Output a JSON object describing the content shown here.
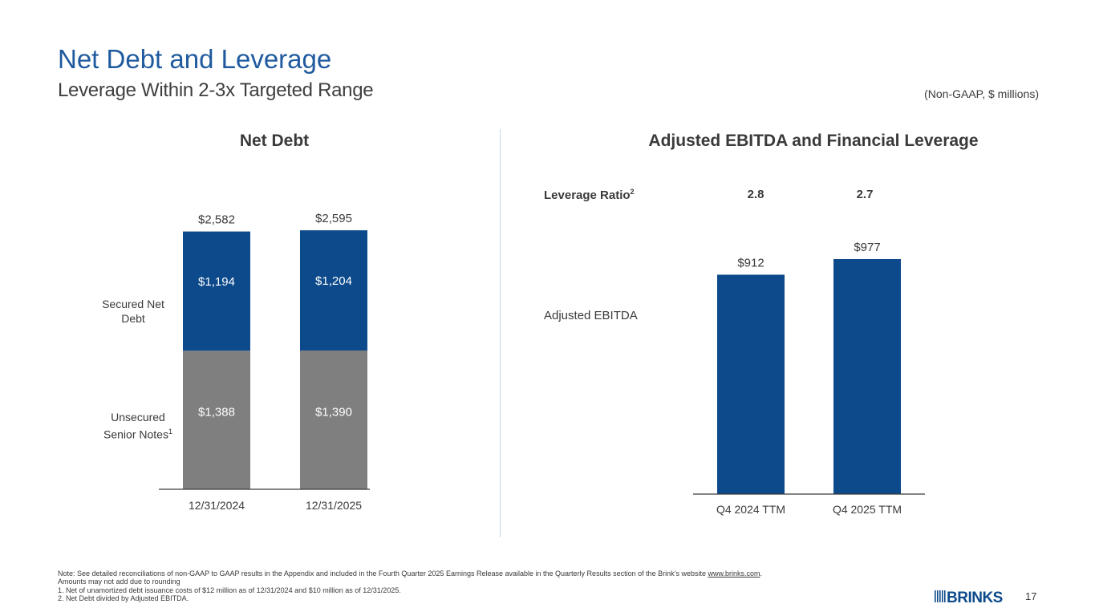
{
  "header": {
    "title": "Net Debt and Leverage",
    "subtitle": "Leverage Within 2-3x Targeted Range",
    "units_note": "(Non-GAAP, $ millions)"
  },
  "colors": {
    "brand_blue": "#0d4a8b",
    "title_blue": "#1f5a9e",
    "unsecured_gray": "#7f7f7f"
  },
  "chart_data": [
    {
      "type": "bar",
      "stacked": true,
      "title": "Net Debt",
      "categories": [
        "12/31/2024",
        "12/31/2025"
      ],
      "series": [
        {
          "name": "Unsecured Senior Notes",
          "footnote_mark": "1",
          "values": [
            1388,
            1390
          ],
          "labels": [
            "$1,388",
            "$1,390"
          ]
        },
        {
          "name": "Secured Net Debt",
          "values": [
            1194,
            1204
          ],
          "labels": [
            "$1,194",
            "$1,204"
          ]
        }
      ],
      "totals": [
        2582,
        2595
      ],
      "total_labels": [
        "$2,582",
        "$2,595"
      ],
      "side_labels": {
        "secured": "Secured Net Debt",
        "unsecured": "Unsecured Senior Notes"
      },
      "ylim": [
        0,
        2595
      ]
    },
    {
      "type": "bar",
      "title": "Adjusted EBITDA and Financial Leverage",
      "categories": [
        "Q4 2024 TTM",
        "Q4 2025 TTM"
      ],
      "series": [
        {
          "name": "Adjusted EBITDA",
          "values": [
            912,
            977
          ],
          "labels": [
            "$912",
            "$977"
          ]
        }
      ],
      "leverage_ratio": {
        "label": "Leverage Ratio",
        "footnote_mark": "2",
        "values": [
          "2.8",
          "2.7"
        ]
      },
      "ylim": [
        0,
        977
      ]
    }
  ],
  "footnotes": {
    "note_prefix": "Note: See detailed reconciliations of non-GAAP to GAAP results in the Appendix and included in the Fourth Quarter 2025 Earnings Release available in the Quarterly Results section of the Brink’s website ",
    "note_link": "www.brinks.com",
    "note_suffix": ".",
    "line2": "Amounts may not add due to rounding",
    "line3": "1.  Net of unamortized debt issuance costs of $12 million as of 12/31/2024 and $10 million as of 12/31/2025.",
    "line4": "2.  Net Debt divided by Adjusted EBITDA."
  },
  "logo_text": "BRINKS",
  "page_number": "17"
}
